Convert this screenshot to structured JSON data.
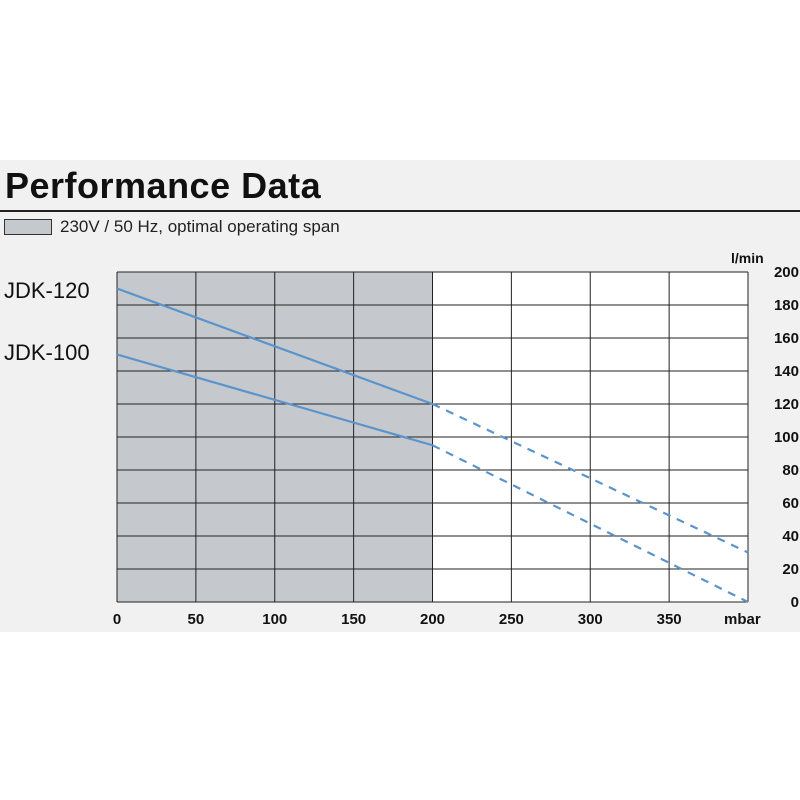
{
  "chart_data": {
    "type": "line",
    "title": "Performance Data",
    "legend": {
      "swatch_label": "230V / 50 Hz, optimal operating span",
      "swatch_color": "#c5c9cd"
    },
    "shaded_region": {
      "x_from": 0,
      "x_to": 200
    },
    "x_unit": "mbar",
    "y_unit": "l/min",
    "xlim": [
      0,
      400
    ],
    "ylim": [
      0,
      200
    ],
    "x_ticks": [
      "0",
      "50",
      "100",
      "150",
      "200",
      "250",
      "300",
      "350"
    ],
    "y_ticks": [
      "0",
      "20",
      "40",
      "60",
      "80",
      "100",
      "120",
      "140",
      "160",
      "180",
      "200"
    ],
    "grid": true,
    "series": [
      {
        "name": "JDK-120",
        "color": "#5b94cc",
        "points": [
          [
            0,
            190
          ],
          [
            200,
            120
          ],
          [
            400,
            30
          ]
        ],
        "solid_until": 200
      },
      {
        "name": "JDK-100",
        "color": "#5b94cc",
        "points": [
          [
            0,
            150
          ],
          [
            200,
            95
          ],
          [
            400,
            0
          ]
        ],
        "solid_until": 200
      }
    ]
  }
}
